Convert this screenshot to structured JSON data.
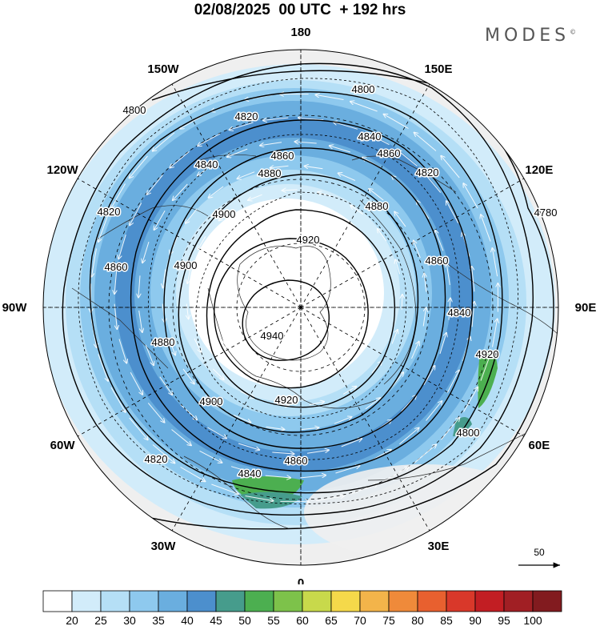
{
  "header": {
    "title": "02/08/2025  00 UTC  + 192 hrs",
    "brand": "MODES",
    "brand_mark": "©"
  },
  "map": {
    "projection": "north-polar-stereographic",
    "longitude_labels": [
      {
        "lon": 180,
        "text": "180"
      },
      {
        "lon": 150,
        "text": "150E"
      },
      {
        "lon": 120,
        "text": "120E"
      },
      {
        "lon": 90,
        "text": "90E"
      },
      {
        "lon": 60,
        "text": "60E"
      },
      {
        "lon": 30,
        "text": "30E"
      },
      {
        "lon": 0,
        "text": "0"
      },
      {
        "lon": -30,
        "text": "30W"
      },
      {
        "lon": -60,
        "text": "60W"
      },
      {
        "lon": -90,
        "text": "90W"
      },
      {
        "lon": -120,
        "text": "120W"
      },
      {
        "lon": -150,
        "text": "150W"
      }
    ],
    "contour_labels": [
      "4800",
      "4800",
      "4820",
      "4840",
      "4860",
      "4820",
      "4860",
      "4880",
      "4900",
      "4820",
      "4840",
      "4860",
      "4880",
      "4780",
      "4900",
      "4920",
      "4860",
      "4840",
      "4940",
      "4880",
      "4920",
      "4900",
      "4920",
      "4800",
      "4860",
      "4840",
      "4820"
    ],
    "vector_reference": {
      "value": "50"
    },
    "colors": {
      "fill_20_25": "#d2ecfa",
      "fill_25_30": "#b5dff6",
      "fill_30_35": "#8ec9ee",
      "fill_35_40": "#6aaedf",
      "fill_40_45": "#4c8fcd",
      "fill_45_50": "#469c8c",
      "fill_50_55": "#4caf50",
      "land": "#efefef"
    }
  },
  "colorbar": {
    "labels": [
      "20",
      "25",
      "30",
      "35",
      "40",
      "45",
      "50",
      "55",
      "60",
      "65",
      "70",
      "75",
      "80",
      "85",
      "90",
      "95",
      "100"
    ],
    "colors": [
      "#ffffff",
      "#d2ecfa",
      "#b5dff6",
      "#8ec9ee",
      "#6aaedf",
      "#4c8fcd",
      "#469c8c",
      "#4caf50",
      "#7dc24a",
      "#c8d94b",
      "#f5d94a",
      "#f3b44a",
      "#ef8a3a",
      "#e8602f",
      "#d9382a",
      "#c21e23",
      "#a11f24",
      "#821b1f"
    ]
  }
}
